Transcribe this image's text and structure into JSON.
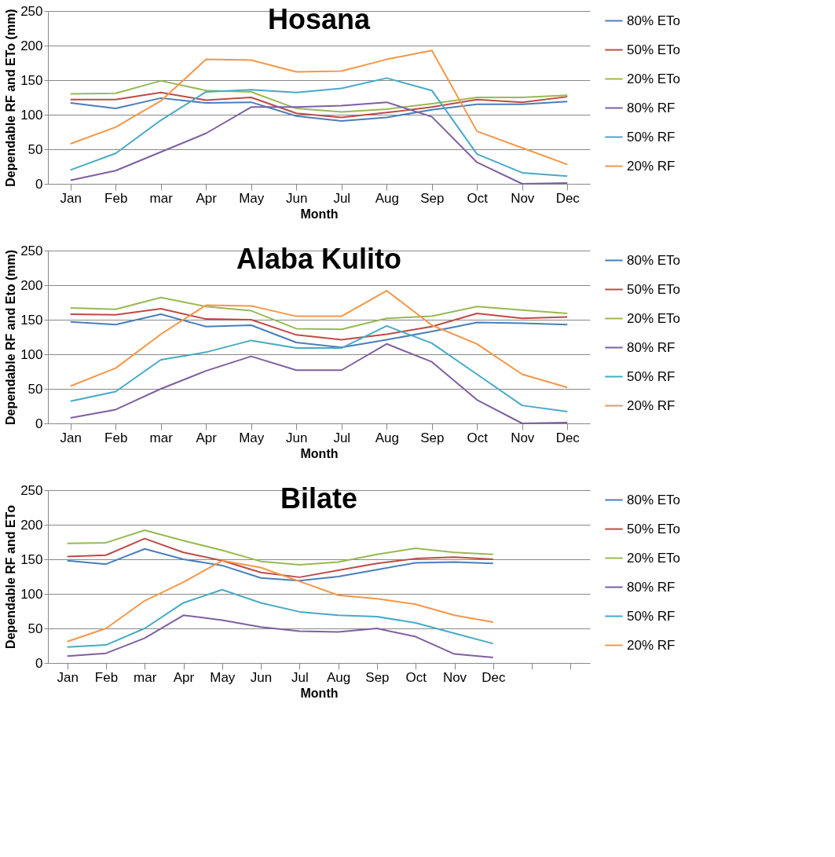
{
  "chart_data": [
    {
      "type": "line",
      "title": "Hosana",
      "xlabel": "Month",
      "ylabel": "Dependable RF and ETo (mm)",
      "categories": [
        "Jan",
        "Feb",
        "mar",
        "Apr",
        "May",
        "Jun",
        "Jul",
        "Aug",
        "Sep",
        "Oct",
        "Nov",
        "Dec"
      ],
      "ylim": [
        0,
        250
      ],
      "yticks": [
        0,
        50,
        100,
        150,
        200,
        250
      ],
      "grid": "y",
      "legend": "right",
      "marker": "none",
      "line_style": "solid",
      "series": [
        {
          "name": "80% ETo",
          "color": "#4a7ebb",
          "values": [
            117,
            109,
            124,
            117,
            118,
            98,
            91,
            96,
            107,
            115,
            115,
            119
          ]
        },
        {
          "name": "50% ETo",
          "color": "#be4b48",
          "values": [
            122,
            122,
            132,
            121,
            125,
            102,
            96,
            103,
            111,
            122,
            118,
            126
          ]
        },
        {
          "name": "20% ETo",
          "color": "#98b954",
          "values": [
            130,
            131,
            149,
            135,
            133,
            109,
            104,
            108,
            116,
            125,
            125,
            128
          ]
        },
        {
          "name": "80% RF",
          "color": "#7d60a0",
          "values": [
            5,
            19,
            46,
            73,
            111,
            111,
            113,
            118,
            97,
            31,
            0,
            1
          ]
        },
        {
          "name": "50% RF",
          "color": "#46aac5",
          "values": [
            20,
            44,
            92,
            133,
            136,
            132,
            138,
            153,
            135,
            43,
            16,
            11
          ]
        },
        {
          "name": "20% RF",
          "color": "#f79646",
          "values": [
            58,
            82,
            120,
            180,
            179,
            162,
            163,
            180,
            193,
            76,
            52,
            28
          ]
        }
      ]
    },
    {
      "type": "line",
      "title": "Alaba Kulito",
      "xlabel": "Month",
      "ylabel": "Dependable RF and Eto (mm)",
      "categories": [
        "Jan",
        "Feb",
        "mar",
        "Apr",
        "May",
        "Jun",
        "Jul",
        "Aug",
        "Sep",
        "Oct",
        "Nov",
        "Dec"
      ],
      "ylim": [
        0,
        250
      ],
      "yticks": [
        0,
        50,
        100,
        150,
        200,
        250
      ],
      "grid": "y",
      "legend": "right",
      "marker": "none",
      "line_style": "solid",
      "series": [
        {
          "name": "80% ETo",
          "color": "#4a7ebb",
          "values": [
            147,
            143,
            158,
            140,
            142,
            117,
            110,
            121,
            133,
            146,
            145,
            143
          ]
        },
        {
          "name": "50% ETo",
          "color": "#be4b48",
          "values": [
            158,
            157,
            166,
            151,
            150,
            128,
            121,
            129,
            140,
            159,
            152,
            154
          ]
        },
        {
          "name": "20% ETo",
          "color": "#98b954",
          "values": [
            167,
            165,
            182,
            169,
            163,
            137,
            136,
            152,
            155,
            169,
            164,
            159
          ]
        },
        {
          "name": "80% RF",
          "color": "#7d60a0",
          "values": [
            8,
            20,
            50,
            76,
            97,
            77,
            77,
            115,
            89,
            34,
            0,
            1
          ]
        },
        {
          "name": "50% RF",
          "color": "#46aac5",
          "values": [
            32,
            46,
            92,
            103,
            120,
            109,
            109,
            141,
            116,
            71,
            26,
            17
          ]
        },
        {
          "name": "20% RF",
          "color": "#f79646",
          "values": [
            54,
            80,
            129,
            171,
            170,
            155,
            155,
            192,
            142,
            115,
            71,
            52
          ]
        }
      ]
    },
    {
      "type": "line",
      "title": "Bilate",
      "xlabel": "Month",
      "ylabel": "Dependable RF and ETo",
      "categories": [
        "Jan",
        "Feb",
        "mar",
        "Apr",
        "May",
        "Jun",
        "Jul",
        "Aug",
        "Sep",
        "Oct",
        "Nov",
        "Dec",
        null,
        null
      ],
      "ylim": [
        0,
        250
      ],
      "yticks": [
        0,
        50,
        100,
        150,
        200,
        250
      ],
      "grid": "y",
      "legend": "right",
      "marker": "none",
      "line_style": "solid",
      "series": [
        {
          "name": "80% ETo",
          "color": "#4a7ebb",
          "values": [
            148,
            143,
            165,
            150,
            141,
            123,
            119,
            125,
            135,
            145,
            146,
            144,
            null,
            null
          ]
        },
        {
          "name": "50% ETo",
          "color": "#be4b48",
          "values": [
            154,
            156,
            180,
            160,
            148,
            131,
            124,
            134,
            144,
            151,
            153,
            150,
            null,
            null
          ]
        },
        {
          "name": "20% ETo",
          "color": "#98b954",
          "values": [
            173,
            174,
            192,
            177,
            163,
            147,
            142,
            146,
            157,
            166,
            160,
            157,
            null,
            null
          ]
        },
        {
          "name": "80% RF",
          "color": "#7d60a0",
          "values": [
            10,
            14,
            36,
            69,
            62,
            52,
            46,
            45,
            50,
            38,
            13,
            8,
            null,
            null
          ]
        },
        {
          "name": "50% RF",
          "color": "#46aac5",
          "values": [
            23,
            26,
            50,
            87,
            106,
            87,
            74,
            69,
            67,
            58,
            43,
            28,
            null,
            null
          ]
        },
        {
          "name": "20% RF",
          "color": "#f79646",
          "values": [
            31,
            50,
            90,
            117,
            148,
            138,
            118,
            98,
            93,
            85,
            69,
            59,
            null,
            null
          ]
        }
      ]
    }
  ]
}
